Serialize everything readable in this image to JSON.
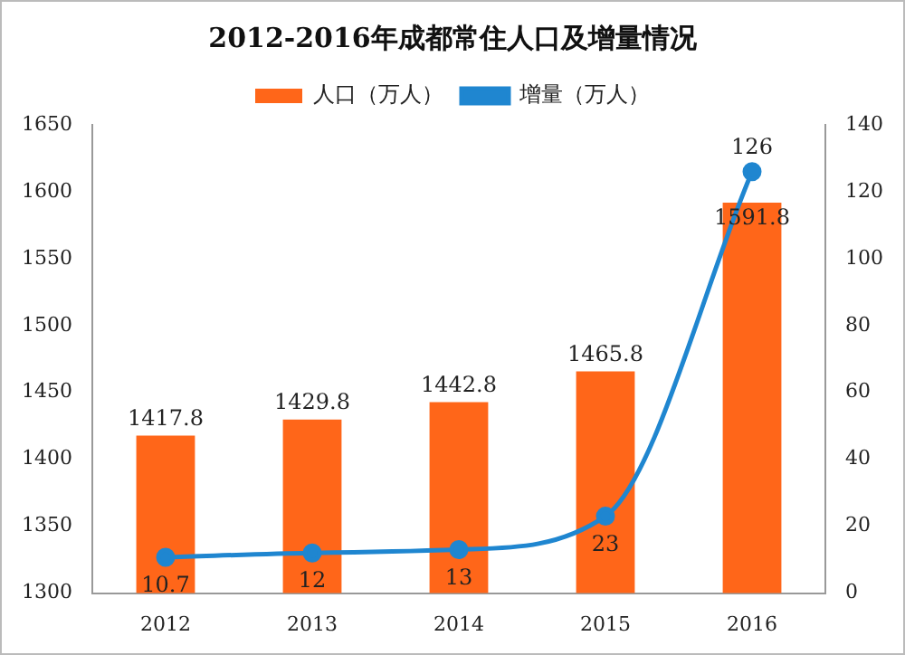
{
  "chart_data": {
    "type": "bar",
    "title": "2012-2016年成都常住人口及增量情况",
    "categories": [
      "2012",
      "2013",
      "2014",
      "2015",
      "2016"
    ],
    "series": [
      {
        "name": "人口（万人）",
        "color": "#ff6619",
        "values": [
          1417.8,
          1429.8,
          1442.8,
          1465.8,
          1591.8
        ]
      },
      {
        "name": "增量（万人）",
        "type": "line",
        "axis": "y2",
        "color": "#1f86d0",
        "values": [
          10.7,
          12,
          13,
          23,
          126
        ]
      }
    ],
    "ylim": [
      1300,
      1650
    ],
    "yticks": [
      1300,
      1350,
      1400,
      1450,
      1500,
      1550,
      1600,
      1650
    ],
    "y2lim": [
      0,
      140
    ],
    "y2ticks": [
      0,
      20,
      40,
      60,
      80,
      100,
      120,
      140
    ],
    "legend": "top",
    "grid": false,
    "marker": "circle",
    "data_labels": true
  }
}
